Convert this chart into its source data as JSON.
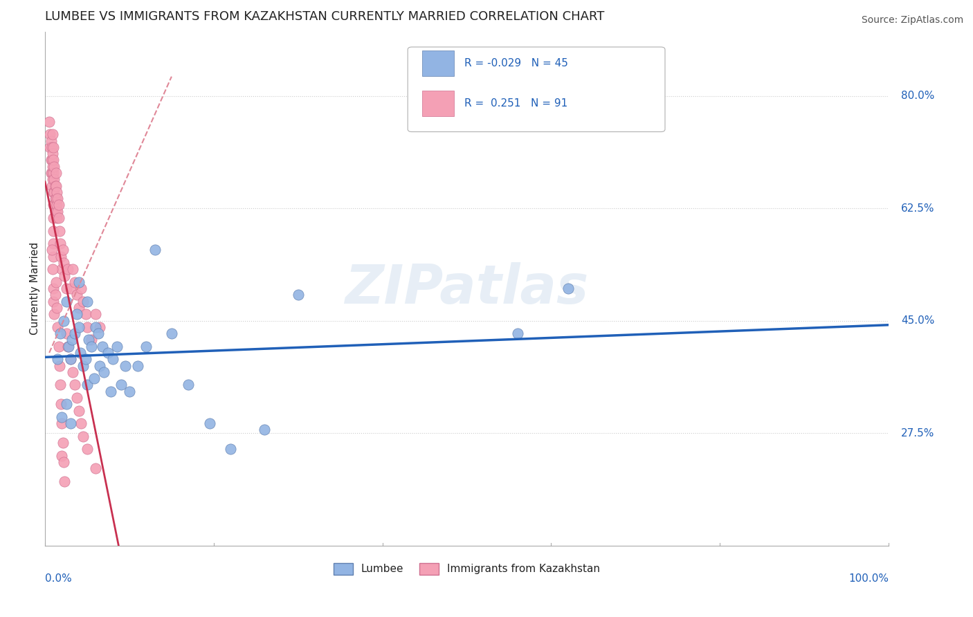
{
  "title": "LUMBEE VS IMMIGRANTS FROM KAZAKHSTAN CURRENTLY MARRIED CORRELATION CHART",
  "source": "Source: ZipAtlas.com",
  "ylabel": "Currently Married",
  "blue_color": "#92b4e3",
  "pink_color": "#f4a0b5",
  "trend_blue_color": "#2060b8",
  "trend_pink_color": "#c83050",
  "trend_pink_dash_color": "#e08898",
  "watermark": "ZIPatlas",
  "legend_blue_r": "R = -0.029",
  "legend_blue_n": "N = 45",
  "legend_pink_r": "R =  0.251",
  "legend_pink_n": "N = 91",
  "lumbee_x": [
    0.018,
    0.022,
    0.025,
    0.028,
    0.03,
    0.032,
    0.035,
    0.038,
    0.04,
    0.042,
    0.045,
    0.048,
    0.05,
    0.052,
    0.055,
    0.058,
    0.06,
    0.063,
    0.065,
    0.068,
    0.07,
    0.075,
    0.078,
    0.08,
    0.085,
    0.09,
    0.095,
    0.1,
    0.11,
    0.12,
    0.13,
    0.15,
    0.17,
    0.195,
    0.22,
    0.26,
    0.3,
    0.56,
    0.62,
    0.015,
    0.02,
    0.025,
    0.03,
    0.04,
    0.05
  ],
  "lumbee_y": [
    0.43,
    0.45,
    0.48,
    0.41,
    0.39,
    0.42,
    0.43,
    0.46,
    0.44,
    0.4,
    0.38,
    0.39,
    0.35,
    0.42,
    0.41,
    0.36,
    0.44,
    0.43,
    0.38,
    0.41,
    0.37,
    0.4,
    0.34,
    0.39,
    0.41,
    0.35,
    0.38,
    0.34,
    0.38,
    0.41,
    0.56,
    0.43,
    0.35,
    0.29,
    0.25,
    0.28,
    0.49,
    0.43,
    0.5,
    0.39,
    0.3,
    0.32,
    0.29,
    0.51,
    0.48
  ],
  "kaz_x": [
    0.005,
    0.006,
    0.006,
    0.007,
    0.007,
    0.007,
    0.008,
    0.008,
    0.008,
    0.008,
    0.009,
    0.009,
    0.009,
    0.009,
    0.01,
    0.01,
    0.01,
    0.01,
    0.01,
    0.01,
    0.01,
    0.01,
    0.01,
    0.011,
    0.011,
    0.011,
    0.011,
    0.012,
    0.012,
    0.012,
    0.013,
    0.013,
    0.013,
    0.013,
    0.014,
    0.014,
    0.014,
    0.015,
    0.015,
    0.016,
    0.016,
    0.017,
    0.018,
    0.019,
    0.02,
    0.021,
    0.022,
    0.023,
    0.025,
    0.027,
    0.03,
    0.033,
    0.035,
    0.038,
    0.04,
    0.043,
    0.045,
    0.048,
    0.05,
    0.055,
    0.06,
    0.065,
    0.02,
    0.008,
    0.009,
    0.01,
    0.01,
    0.011,
    0.012,
    0.013,
    0.014,
    0.015,
    0.016,
    0.017,
    0.018,
    0.019,
    0.02,
    0.021,
    0.022,
    0.023,
    0.025,
    0.027,
    0.03,
    0.033,
    0.035,
    0.038,
    0.04,
    0.043,
    0.045,
    0.05,
    0.06
  ],
  "kaz_y": [
    0.76,
    0.74,
    0.72,
    0.73,
    0.7,
    0.68,
    0.72,
    0.7,
    0.68,
    0.66,
    0.74,
    0.71,
    0.69,
    0.67,
    0.72,
    0.7,
    0.68,
    0.65,
    0.63,
    0.61,
    0.59,
    0.57,
    0.55,
    0.69,
    0.67,
    0.65,
    0.63,
    0.66,
    0.64,
    0.62,
    0.68,
    0.66,
    0.64,
    0.62,
    0.65,
    0.63,
    0.61,
    0.64,
    0.62,
    0.63,
    0.61,
    0.59,
    0.57,
    0.55,
    0.53,
    0.56,
    0.54,
    0.52,
    0.5,
    0.53,
    0.5,
    0.53,
    0.51,
    0.49,
    0.47,
    0.5,
    0.48,
    0.46,
    0.44,
    0.42,
    0.46,
    0.44,
    0.24,
    0.56,
    0.53,
    0.5,
    0.48,
    0.46,
    0.49,
    0.51,
    0.47,
    0.44,
    0.41,
    0.38,
    0.35,
    0.32,
    0.29,
    0.26,
    0.23,
    0.2,
    0.43,
    0.41,
    0.39,
    0.37,
    0.35,
    0.33,
    0.31,
    0.29,
    0.27,
    0.25,
    0.22
  ],
  "xlim": [
    0.0,
    1.0
  ],
  "ylim": [
    0.1,
    0.9
  ],
  "yticks": [
    0.275,
    0.45,
    0.625,
    0.8
  ],
  "ytick_labels": [
    "27.5%",
    "45.0%",
    "62.5%",
    "80.0%"
  ],
  "title_fontsize": 13,
  "label_fontsize": 11,
  "marker_size": 120,
  "background_color": "#ffffff",
  "grid_color": "#cccccc",
  "axis_color": "#aaaaaa",
  "text_color": "#222222",
  "label_color": "#2060b8"
}
